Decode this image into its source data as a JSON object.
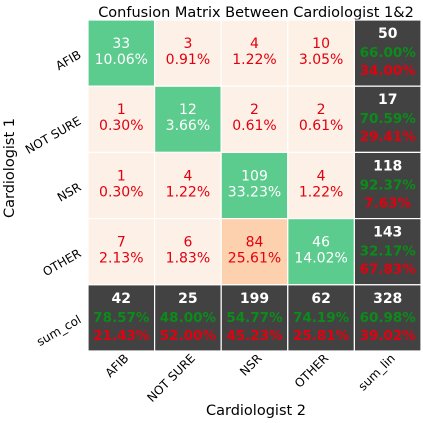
{
  "chart_data": {
    "type": "heatmap",
    "title": "Confusion Matrix Between Cardiologist 1&2",
    "xlabel": "Cardiologist 2",
    "ylabel": "Cardiologist 1",
    "x_categories": [
      "AFIB",
      "NOT SURE",
      "NSR",
      "OTHER",
      "sum_lin"
    ],
    "y_categories": [
      "AFIB",
      "NOT SURE",
      "NSR",
      "OTHER",
      "sum_col"
    ],
    "cells": [
      [
        {
          "count": "33",
          "pct": "10.06%"
        },
        {
          "count": "3",
          "pct": "0.91%"
        },
        {
          "count": "4",
          "pct": "1.22%"
        },
        {
          "count": "10",
          "pct": "3.05%"
        }
      ],
      [
        {
          "count": "1",
          "pct": "0.30%"
        },
        {
          "count": "12",
          "pct": "3.66%"
        },
        {
          "count": "2",
          "pct": "0.61%"
        },
        {
          "count": "2",
          "pct": "0.61%"
        }
      ],
      [
        {
          "count": "1",
          "pct": "0.30%"
        },
        {
          "count": "4",
          "pct": "1.22%"
        },
        {
          "count": "109",
          "pct": "33.23%"
        },
        {
          "count": "4",
          "pct": "1.22%"
        }
      ],
      [
        {
          "count": "7",
          "pct": "2.13%"
        },
        {
          "count": "6",
          "pct": "1.83%"
        },
        {
          "count": "84",
          "pct": "25.61%"
        },
        {
          "count": "46",
          "pct": "14.02%"
        }
      ]
    ],
    "row_sums": [
      {
        "count": "50",
        "correct": "66.00%",
        "error": "34.00%"
      },
      {
        "count": "17",
        "correct": "70.59%",
        "error": "29.41%"
      },
      {
        "count": "118",
        "correct": "92.37%",
        "error": "7.63%"
      },
      {
        "count": "143",
        "correct": "32.17%",
        "error": "67.83%"
      }
    ],
    "col_sums": [
      {
        "count": "42",
        "correct": "78.57%",
        "error": "21.43%"
      },
      {
        "count": "25",
        "correct": "48.00%",
        "error": "52.00%"
      },
      {
        "count": "199",
        "correct": "54.77%",
        "error": "45.23%"
      },
      {
        "count": "62",
        "correct": "74.19%",
        "error": "25.81%"
      }
    ],
    "total": {
      "count": "328",
      "correct": "60.98%",
      "error": "39.02%"
    },
    "colors": {
      "diagonal": "#5ccb8e",
      "offdiag_low": "#fdf0e6",
      "offdiag_high": "#fdd1ae",
      "sum_bg": "#424242",
      "pct_red": "#e3000f",
      "pct_green": "#0b8c1a",
      "grid": "#ffffff"
    }
  }
}
